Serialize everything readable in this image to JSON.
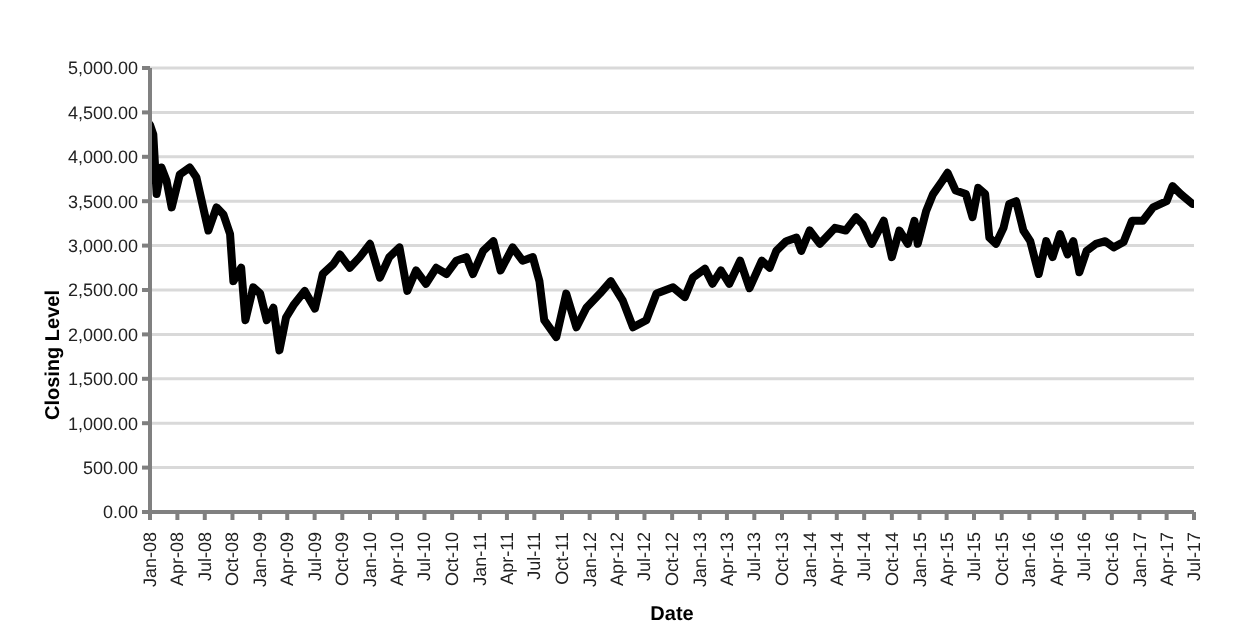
{
  "chart_data": {
    "type": "line",
    "xlabel": "Date",
    "ylabel": "Closing Level",
    "x": [
      "2008-01-01",
      "2008-01-12",
      "2008-01-23",
      "2008-02-08",
      "2008-02-25",
      "2008-03-13",
      "2008-04-09",
      "2008-05-12",
      "2008-06-03",
      "2008-07-13",
      "2008-08-09",
      "2008-09-01",
      "2008-09-23",
      "2008-10-04",
      "2008-10-30",
      "2008-11-13",
      "2008-12-09",
      "2009-01-01",
      "2009-01-23",
      "2009-02-14",
      "2009-03-06",
      "2009-03-28",
      "2009-04-24",
      "2009-05-29",
      "2009-07-02",
      "2009-07-28",
      "2009-09-01",
      "2009-09-23",
      "2009-10-26",
      "2009-11-28",
      "2010-01-01",
      "2010-02-03",
      "2010-03-06",
      "2010-04-09",
      "2010-05-05",
      "2010-06-03",
      "2010-07-06",
      "2010-08-09",
      "2010-09-12",
      "2010-10-15",
      "2010-11-17",
      "2010-12-09",
      "2011-01-12",
      "2011-02-15",
      "2011-03-11",
      "2011-04-20",
      "2011-05-23",
      "2011-06-26",
      "2011-07-18",
      "2011-08-03",
      "2011-09-12",
      "2011-10-15",
      "2011-11-18",
      "2011-12-21",
      "2012-02-04",
      "2012-03-11",
      "2012-04-20",
      "2012-05-24",
      "2012-07-07",
      "2012-08-10",
      "2012-10-04",
      "2012-11-12",
      "2012-12-09",
      "2013-01-18",
      "2013-02-12",
      "2013-03-12",
      "2013-04-09",
      "2013-05-15",
      "2013-06-15",
      "2013-07-26",
      "2013-08-21",
      "2013-09-12",
      "2013-10-15",
      "2013-11-18",
      "2013-12-04",
      "2014-01-01",
      "2014-02-04",
      "2014-03-07",
      "2014-03-26",
      "2014-05-01",
      "2014-06-04",
      "2014-06-26",
      "2014-07-26",
      "2014-09-04",
      "2014-10-01",
      "2014-10-26",
      "2014-11-23",
      "2014-12-15",
      "2014-12-26",
      "2015-01-23",
      "2015-02-15",
      "2015-03-18",
      "2015-04-04",
      "2015-05-01",
      "2015-06-04",
      "2015-06-26",
      "2015-07-15",
      "2015-08-07",
      "2015-08-21",
      "2015-09-12",
      "2015-10-07",
      "2015-10-26",
      "2015-11-18",
      "2015-12-12",
      "2016-01-04",
      "2016-02-01",
      "2016-02-26",
      "2016-03-18",
      "2016-04-12",
      "2016-05-07",
      "2016-05-26",
      "2016-06-15",
      "2016-07-09",
      "2016-08-09",
      "2016-09-09",
      "2016-10-07",
      "2016-11-09",
      "2016-12-07",
      "2017-01-12",
      "2017-02-15",
      "2017-04-01",
      "2017-04-21",
      "2017-05-18",
      "2017-06-26"
    ],
    "series": [
      {
        "color": "#000000",
        "values": [
          4360,
          4250,
          3580,
          3880,
          3730,
          3430,
          3800,
          3880,
          3770,
          3170,
          3430,
          3350,
          3130,
          2600,
          2750,
          2160,
          2530,
          2460,
          2160,
          2300,
          1820,
          2190,
          2340,
          2490,
          2290,
          2680,
          2790,
          2900,
          2750,
          2870,
          3020,
          2640,
          2870,
          2980,
          2490,
          2720,
          2570,
          2750,
          2680,
          2830,
          2870,
          2680,
          2940,
          3050,
          2720,
          2980,
          2830,
          2870,
          2600,
          2160,
          1970,
          2460,
          2080,
          2300,
          2460,
          2600,
          2380,
          2080,
          2160,
          2460,
          2530,
          2420,
          2640,
          2740,
          2570,
          2720,
          2570,
          2830,
          2520,
          2830,
          2750,
          2940,
          3050,
          3090,
          2940,
          3170,
          3020,
          3130,
          3200,
          3170,
          3320,
          3240,
          3020,
          3280,
          2870,
          3170,
          3020,
          3280,
          3020,
          3390,
          3580,
          3730,
          3820,
          3620,
          3580,
          3320,
          3650,
          3580,
          3090,
          3020,
          3200,
          3470,
          3500,
          3170,
          3050,
          2680,
          3050,
          2870,
          3130,
          2900,
          3050,
          2700,
          2940,
          3020,
          3050,
          2980,
          3040,
          3280,
          3280,
          3430,
          3500,
          3670,
          3580,
          3470
        ]
      }
    ],
    "xlim": [
      "2008-01",
      "2017-07"
    ],
    "xticks": [
      {
        "value": "2008-01",
        "label": "Jan-08"
      },
      {
        "value": "2008-04",
        "label": "Apr-08"
      },
      {
        "value": "2008-07",
        "label": "Jul-08"
      },
      {
        "value": "2008-10",
        "label": "Oct-08"
      },
      {
        "value": "2009-01",
        "label": "Jan-09"
      },
      {
        "value": "2009-04",
        "label": "Apr-09"
      },
      {
        "value": "2009-07",
        "label": "Jul-09"
      },
      {
        "value": "2009-10",
        "label": "Oct-09"
      },
      {
        "value": "2010-01",
        "label": "Jan-10"
      },
      {
        "value": "2010-04",
        "label": "Apr-10"
      },
      {
        "value": "2010-07",
        "label": "Jul-10"
      },
      {
        "value": "2010-10",
        "label": "Oct-10"
      },
      {
        "value": "2011-01",
        "label": "Jan-11"
      },
      {
        "value": "2011-04",
        "label": "Apr-11"
      },
      {
        "value": "2011-07",
        "label": "Jul-11"
      },
      {
        "value": "2011-10",
        "label": "Oct-11"
      },
      {
        "value": "2012-01",
        "label": "Jan-12"
      },
      {
        "value": "2012-04",
        "label": "Apr-12"
      },
      {
        "value": "2012-07",
        "label": "Jul-12"
      },
      {
        "value": "2012-10",
        "label": "Oct-12"
      },
      {
        "value": "2013-01",
        "label": "Jan-13"
      },
      {
        "value": "2013-04",
        "label": "Apr-13"
      },
      {
        "value": "2013-07",
        "label": "Jul-13"
      },
      {
        "value": "2013-10",
        "label": "Oct-13"
      },
      {
        "value": "2014-01",
        "label": "Jan-14"
      },
      {
        "value": "2014-04",
        "label": "Apr-14"
      },
      {
        "value": "2014-07",
        "label": "Jul-14"
      },
      {
        "value": "2014-10",
        "label": "Oct-14"
      },
      {
        "value": "2015-01",
        "label": "Jan-15"
      },
      {
        "value": "2015-04",
        "label": "Apr-15"
      },
      {
        "value": "2015-07",
        "label": "Jul-15"
      },
      {
        "value": "2015-10",
        "label": "Oct-15"
      },
      {
        "value": "2016-01",
        "label": "Jan-16"
      },
      {
        "value": "2016-04",
        "label": "Apr-16"
      },
      {
        "value": "2016-07",
        "label": "Jul-16"
      },
      {
        "value": "2016-10",
        "label": "Oct-16"
      },
      {
        "value": "2017-01",
        "label": "Jan-17"
      },
      {
        "value": "2017-04",
        "label": "Apr-17"
      },
      {
        "value": "2017-07",
        "label": "Jul-17"
      }
    ],
    "ylim": [
      0,
      5000
    ],
    "yticks": [
      {
        "value": 0,
        "label": "0.00"
      },
      {
        "value": 500,
        "label": "500.00"
      },
      {
        "value": 1000,
        "label": "1,000.00"
      },
      {
        "value": 1500,
        "label": "1,500.00"
      },
      {
        "value": 2000,
        "label": "2,000.00"
      },
      {
        "value": 2500,
        "label": "2,500.00"
      },
      {
        "value": 3000,
        "label": "3,000.00"
      },
      {
        "value": 3500,
        "label": "3,500.00"
      },
      {
        "value": 4000,
        "label": "4,000.00"
      },
      {
        "value": 4500,
        "label": "4,500.00"
      },
      {
        "value": 5000,
        "label": "5,000.00"
      }
    ],
    "grid": "y",
    "legend": false,
    "marker": "none",
    "line_style": "solid"
  }
}
